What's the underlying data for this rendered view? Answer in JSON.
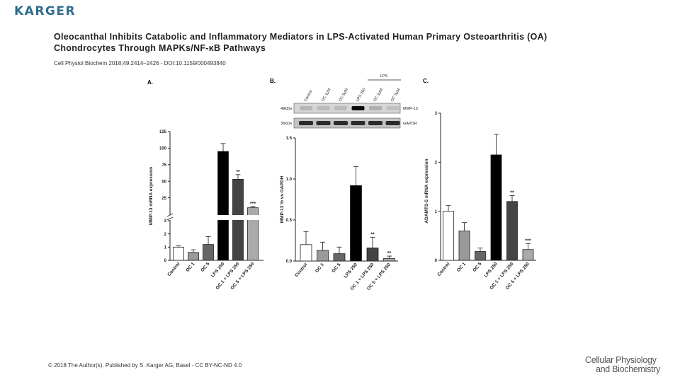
{
  "header": {
    "logo": "KARGER",
    "title_line1": "Oleocanthal Inhibits Catabolic and Inflammatory Mediators in LPS-Activated Human Primary Osteoarthritis (OA)",
    "title_line2": "Chondrocytes Through MAPKs/NF-κB Pathways",
    "citation": "Cell Physiol Biochem 2018;49:2414–2426 - DOI:10.1159/000493840"
  },
  "footer": {
    "copyright": "© 2018 The Author(s). Published by S. Karger AG, Basel - CC BY-NC-ND 4.0",
    "journal_line1": "Cellular Physiology",
    "journal_line2": "and Biochemistry"
  },
  "colors": {
    "control": "#ffffff",
    "oc1": "#9a9a9a",
    "oc5": "#666666",
    "lps": "#000000",
    "oc1lps": "#444444",
    "oc5lps": "#aaaaaa"
  },
  "chart_data": [
    {
      "panel": "A.",
      "type": "bar",
      "ylabel": "MMP-13 mRNA expression",
      "y_axis": "broken",
      "lower_ticks": [
        "0",
        "1",
        "2",
        "3"
      ],
      "upper_ticks": [
        "25",
        "50",
        "75",
        "100",
        "125"
      ],
      "categories": [
        "Control",
        "OC 1",
        "OC 5",
        "LPS 250",
        "OC 1 + LPS 250",
        "OC 5 + LPS 250"
      ],
      "values": [
        1.0,
        0.6,
        1.2,
        95,
        53,
        10
      ],
      "errors": [
        0.1,
        0.2,
        0.6,
        12,
        7,
        2
      ],
      "significance": [
        "",
        "",
        "",
        "",
        "**",
        "***"
      ]
    },
    {
      "panel": "B.",
      "type": "bar",
      "ylabel": "MMP-13 % vs GAPDH",
      "ylim": [
        0,
        1.5
      ],
      "ticks": [
        "0.0",
        "0.5",
        "1.0",
        "1.5"
      ],
      "categories": [
        "Control",
        "OC 1",
        "OC 5",
        "LPS 250",
        "OC 1 + LPS 250",
        "OC 5 + LPS 250"
      ],
      "values": [
        0.2,
        0.13,
        0.09,
        0.92,
        0.16,
        0.03
      ],
      "errors": [
        0.16,
        0.1,
        0.08,
        0.23,
        0.13,
        0.03
      ],
      "significance": [
        "",
        "",
        "",
        "",
        "**",
        "**"
      ],
      "blot": {
        "lanes": [
          "Control",
          "OC 1µM",
          "OC 5µM",
          "LPS 250",
          "OC 1µM",
          "OC 5µM"
        ],
        "group_label": "LPS",
        "rows": [
          {
            "size": "48kDa",
            "protein": "MMP-13"
          },
          {
            "size": "36kDa",
            "protein": "GAPDH"
          }
        ]
      }
    },
    {
      "panel": "C.",
      "type": "bar",
      "ylabel": "ADAMTS-5 mRNA expression",
      "ylim": [
        0,
        3
      ],
      "ticks": [
        "0",
        "1",
        "2",
        "3"
      ],
      "categories": [
        "Control",
        "OC 1",
        "OC 5",
        "LPS 250",
        "OC 1 + LPS 250",
        "OC 5 + LPS 250"
      ],
      "values": [
        1.0,
        0.6,
        0.18,
        2.15,
        1.2,
        0.22
      ],
      "errors": [
        0.12,
        0.17,
        0.07,
        0.42,
        0.12,
        0.12
      ],
      "significance": [
        "",
        "",
        "",
        "",
        "**",
        "***"
      ]
    }
  ]
}
